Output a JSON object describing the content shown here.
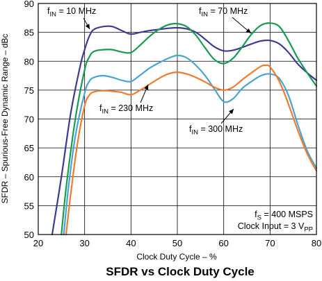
{
  "chart_data": {
    "type": "line",
    "title": "SFDR vs Clock Duty Cycle",
    "xlabel": "Clock Duty Cycle – %",
    "ylabel": "SFDR – Spurious-Free Dynamic Range – dBc",
    "xlim": [
      20,
      80
    ],
    "ylim": [
      50,
      90
    ],
    "xticks": [
      20,
      30,
      40,
      50,
      60,
      70,
      80
    ],
    "yticks": [
      50,
      55,
      60,
      65,
      70,
      75,
      80,
      85,
      90
    ],
    "grid": true,
    "conditions": [
      {
        "main": "f",
        "sub": "S",
        "tail": " = 400 MSPS"
      },
      {
        "main": "Clock Input = 3 V",
        "sub": "PP",
        "tail": ""
      }
    ],
    "series": [
      {
        "name": "fIN = 10 MHz",
        "label": {
          "main": "f",
          "sub": "IN",
          "tail": " = 10 MHz"
        },
        "color": "#3b3a94",
        "x": [
          23,
          25,
          27,
          29,
          30,
          31,
          32,
          34,
          36,
          38,
          40,
          42,
          44,
          46,
          48,
          50,
          52,
          54,
          56,
          58,
          60,
          62,
          64,
          66,
          68,
          70,
          72,
          74,
          76,
          78,
          80
        ],
        "y": [
          50,
          60,
          71,
          79,
          82,
          84.3,
          85.5,
          86,
          86,
          85.3,
          84.7,
          85,
          85.3,
          85.5,
          85.7,
          85.8,
          85.6,
          85,
          83.8,
          82.5,
          81.8,
          81.9,
          82.4,
          83,
          83.5,
          83.6,
          83,
          81.5,
          79.5,
          78,
          76.7
        ]
      },
      {
        "name": "fIN = 70 MHz",
        "label": {
          "main": "f",
          "sub": "IN",
          "tail": " = 70 MHz"
        },
        "color": "#1a9a50",
        "x": [
          25,
          26,
          28,
          30,
          31,
          32,
          34,
          36,
          38,
          40,
          42,
          44,
          46,
          48,
          50,
          52,
          54,
          56,
          58,
          60,
          62,
          64,
          66,
          68,
          70,
          72,
          74,
          76,
          78,
          80
        ],
        "y": [
          50,
          58,
          70,
          78.5,
          80.7,
          81.7,
          82,
          82,
          81.6,
          81.5,
          82.8,
          84.3,
          85.5,
          86.3,
          86.5,
          86,
          84.5,
          82.3,
          80.3,
          79.6,
          80.5,
          82.5,
          84.7,
          86.2,
          86.6,
          86,
          83.5,
          80.5,
          78,
          75.7
        ]
      },
      {
        "name": "fIN = 230 MHz",
        "label": {
          "main": "f",
          "sub": "IN",
          "tail": " = 230 MHz"
        },
        "color": "#4aa3d0",
        "x": [
          25.5,
          26.5,
          28,
          30,
          31,
          32,
          34,
          36,
          38,
          40,
          42,
          44,
          46,
          48,
          50,
          52,
          54,
          56,
          58,
          60,
          62,
          64,
          66,
          68,
          70,
          72,
          74,
          76,
          78,
          80
        ],
        "y": [
          50,
          58,
          67,
          74.5,
          76.5,
          77.2,
          77.5,
          77.2,
          76.7,
          76.5,
          77.6,
          78.8,
          79.7,
          80.5,
          81,
          80.6,
          79.3,
          77.5,
          75.2,
          73,
          73.5,
          75.3,
          76.5,
          77.5,
          77.8,
          77,
          74,
          69,
          64.5,
          61.5
        ]
      },
      {
        "name": "fIN = 300 MHz",
        "label": {
          "main": "f",
          "sub": "IN",
          "tail": " = 300 MHz"
        },
        "color": "#f07a2e",
        "x": [
          26,
          27,
          28.5,
          30,
          31,
          32,
          34,
          36,
          38,
          40,
          42,
          44,
          46,
          48,
          50,
          52,
          54,
          56,
          58,
          60,
          62,
          64,
          66,
          68,
          69,
          70,
          72,
          74,
          76,
          78,
          80
        ],
        "y": [
          50,
          57,
          66,
          72.3,
          74.1,
          74.7,
          74.9,
          74.8,
          74.6,
          74.2,
          75,
          76,
          77,
          77.8,
          78.1,
          77.8,
          77.2,
          76.4,
          75.5,
          75,
          75.5,
          76.8,
          78,
          79.1,
          79.3,
          79,
          76.5,
          72.5,
          68,
          64,
          61
        ]
      }
    ]
  }
}
